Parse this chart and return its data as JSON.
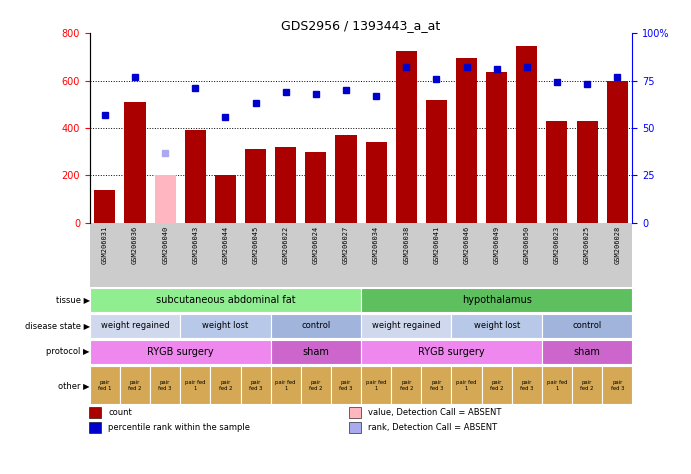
{
  "title": "GDS2956 / 1393443_a_at",
  "samples": [
    "GSM206031",
    "GSM206036",
    "GSM206040",
    "GSM206043",
    "GSM206044",
    "GSM206045",
    "GSM206022",
    "GSM206024",
    "GSM206027",
    "GSM206034",
    "GSM206038",
    "GSM206041",
    "GSM206046",
    "GSM206049",
    "GSM206050",
    "GSM206023",
    "GSM206025",
    "GSM206028"
  ],
  "count_values": [
    140,
    510,
    200,
    390,
    200,
    310,
    320,
    300,
    370,
    340,
    725,
    520,
    695,
    635,
    745,
    430,
    430,
    600
  ],
  "count_absent": [
    false,
    false,
    true,
    false,
    false,
    false,
    false,
    false,
    false,
    false,
    false,
    false,
    false,
    false,
    false,
    false,
    false,
    false
  ],
  "percentile_values": [
    57,
    77,
    37,
    71,
    56,
    63,
    69,
    68,
    70,
    67,
    82,
    76,
    82,
    81,
    82,
    74,
    73,
    77
  ],
  "percentile_absent": [
    false,
    false,
    true,
    false,
    false,
    false,
    false,
    false,
    false,
    false,
    false,
    false,
    false,
    false,
    false,
    false,
    false,
    false
  ],
  "bar_color_normal": "#AA0000",
  "bar_color_absent": "#FFB6C1",
  "dot_color_normal": "#0000CC",
  "dot_color_absent": "#AAAAEE",
  "ylim_left": [
    0,
    800
  ],
  "ylim_right": [
    0,
    100
  ],
  "yticks_left": [
    0,
    200,
    400,
    600,
    800
  ],
  "yticks_right": [
    0,
    25,
    50,
    75,
    100
  ],
  "ytick_labels_right": [
    "0",
    "25",
    "50",
    "75",
    "100%"
  ],
  "tissue_groups": [
    {
      "label": "subcutaneous abdominal fat",
      "start": 0,
      "end": 9,
      "color": "#90EE90"
    },
    {
      "label": "hypothalamus",
      "start": 9,
      "end": 18,
      "color": "#5DBF5D"
    }
  ],
  "disease_groups": [
    {
      "label": "weight regained",
      "start": 0,
      "end": 3,
      "color": "#D0D8EE"
    },
    {
      "label": "weight lost",
      "start": 3,
      "end": 6,
      "color": "#B8C8E8"
    },
    {
      "label": "control",
      "start": 6,
      "end": 9,
      "color": "#A0B4DC"
    },
    {
      "label": "weight regained",
      "start": 9,
      "end": 12,
      "color": "#D0D8EE"
    },
    {
      "label": "weight lost",
      "start": 12,
      "end": 15,
      "color": "#B8C8E8"
    },
    {
      "label": "control",
      "start": 15,
      "end": 18,
      "color": "#A0B4DC"
    }
  ],
  "protocol_groups": [
    {
      "label": "RYGB surgery",
      "start": 0,
      "end": 6,
      "color": "#EE88EE"
    },
    {
      "label": "sham",
      "start": 6,
      "end": 9,
      "color": "#CC66CC"
    },
    {
      "label": "RYGB surgery",
      "start": 9,
      "end": 15,
      "color": "#EE88EE"
    },
    {
      "label": "sham",
      "start": 15,
      "end": 18,
      "color": "#CC66CC"
    }
  ],
  "other_labels": [
    "pair\nfed 1",
    "pair\nfed 2",
    "pair\nfed 3",
    "pair fed\n1",
    "pair\nfed 2",
    "pair\nfed 3",
    "pair fed\n1",
    "pair\nfed 2",
    "pair\nfed 3",
    "pair fed\n1",
    "pair\nfed 2",
    "pair\nfed 3",
    "pair fed\n1",
    "pair\nfed 2",
    "pair\nfed 3",
    "pair fed\n1",
    "pair\nfed 2",
    "pair\nfed 3"
  ],
  "other_color": "#D4A855",
  "row_labels": [
    "tissue",
    "disease state",
    "protocol",
    "other"
  ],
  "legend_items": [
    {
      "color": "#AA0000",
      "label": "count"
    },
    {
      "color": "#0000CC",
      "label": "percentile rank within the sample"
    },
    {
      "color": "#FFB6C1",
      "label": "value, Detection Call = ABSENT"
    },
    {
      "color": "#AAAAEE",
      "label": "rank, Detection Call = ABSENT"
    }
  ]
}
